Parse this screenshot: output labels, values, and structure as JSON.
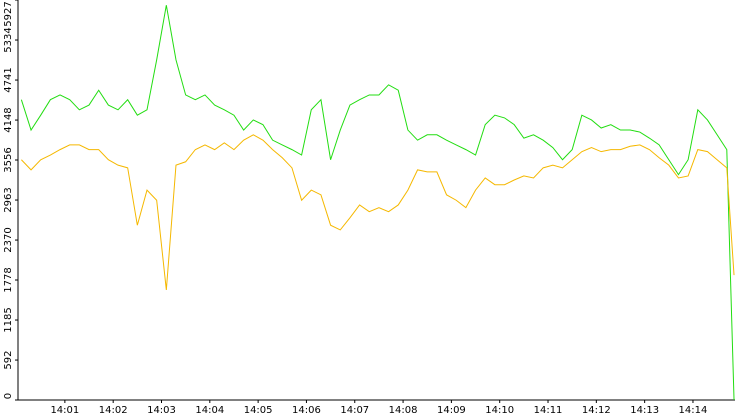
{
  "chart_data": {
    "type": "line",
    "x": [
      840.1,
      840.3,
      840.5,
      840.7,
      840.9,
      841.1,
      841.3,
      841.5,
      841.7,
      841.9,
      842.1,
      842.3,
      842.5,
      842.7,
      842.9,
      843.1,
      843.3,
      843.5,
      843.7,
      843.9,
      844.1,
      844.3,
      844.5,
      844.7,
      844.9,
      845.1,
      845.3,
      845.5,
      845.7,
      845.9,
      846.1,
      846.3,
      846.5,
      846.7,
      846.9,
      847.1,
      847.3,
      847.5,
      847.7,
      847.9,
      848.1,
      848.3,
      848.5,
      848.7,
      848.9,
      849.1,
      849.3,
      849.5,
      849.7,
      849.9,
      850.1,
      850.3,
      850.5,
      850.7,
      850.9,
      851.1,
      851.3,
      851.5,
      851.7,
      851.9,
      852.1,
      852.3,
      852.5,
      852.7,
      852.9,
      853.1,
      853.3,
      853.5,
      853.7,
      853.9,
      854.1,
      854.3,
      854.5,
      854.7,
      854.85
    ],
    "series": [
      {
        "color": "#22dd11",
        "values": [
          4450,
          4000,
          4220,
          4450,
          4520,
          4450,
          4300,
          4370,
          4590,
          4370,
          4300,
          4450,
          4220,
          4300,
          5040,
          5850,
          5040,
          4520,
          4450,
          4520,
          4370,
          4300,
          4220,
          4000,
          4150,
          4080,
          3850,
          3780,
          3710,
          3630,
          4300,
          4450,
          3560,
          4000,
          4370,
          4450,
          4520,
          4520,
          4670,
          4590,
          4000,
          3850,
          3930,
          3930,
          3850,
          3780,
          3710,
          3630,
          4080,
          4220,
          4180,
          4080,
          3880,
          3930,
          3850,
          3740,
          3560,
          3710,
          4220,
          4150,
          4030,
          4080,
          4000,
          4000,
          3970,
          3880,
          3780,
          3560,
          3340,
          3560,
          4300,
          4150,
          3930,
          3710,
          0
        ]
      },
      {
        "color": "#f5b800",
        "values": [
          3560,
          3410,
          3560,
          3630,
          3710,
          3780,
          3780,
          3710,
          3710,
          3560,
          3480,
          3440,
          2590,
          3110,
          2960,
          1630,
          3480,
          3530,
          3710,
          3780,
          3710,
          3810,
          3710,
          3850,
          3930,
          3850,
          3710,
          3590,
          3440,
          2960,
          3110,
          3040,
          2590,
          2520,
          2700,
          2890,
          2790,
          2850,
          2790,
          2890,
          3110,
          3410,
          3380,
          3380,
          3040,
          2960,
          2850,
          3110,
          3290,
          3190,
          3190,
          3260,
          3320,
          3290,
          3440,
          3480,
          3440,
          3560,
          3680,
          3740,
          3680,
          3710,
          3710,
          3760,
          3780,
          3710,
          3590,
          3480,
          3290,
          3320,
          3710,
          3680,
          3560,
          3440,
          1850
        ]
      }
    ],
    "xlim": [
      840.03,
      854.87
    ],
    "xticks": [
      {
        "value": 841,
        "label": "14:01"
      },
      {
        "value": 842,
        "label": "14:02"
      },
      {
        "value": 843,
        "label": "14:03"
      },
      {
        "value": 844,
        "label": "14:04"
      },
      {
        "value": 845,
        "label": "14:05"
      },
      {
        "value": 846,
        "label": "14:06"
      },
      {
        "value": 847,
        "label": "14:07"
      },
      {
        "value": 848,
        "label": "14:08"
      },
      {
        "value": 849,
        "label": "14:09"
      },
      {
        "value": 850,
        "label": "14:10"
      },
      {
        "value": 851,
        "label": "14:11"
      },
      {
        "value": 852,
        "label": "14:12"
      },
      {
        "value": 853,
        "label": "14:13"
      },
      {
        "value": 854,
        "label": "14:14"
      }
    ],
    "ylim": [
      0,
      5927
    ],
    "yticks": [
      0,
      592,
      1185,
      1778,
      2370,
      2963,
      3556,
      4148,
      4741,
      5334,
      5927
    ],
    "grid": false
  }
}
